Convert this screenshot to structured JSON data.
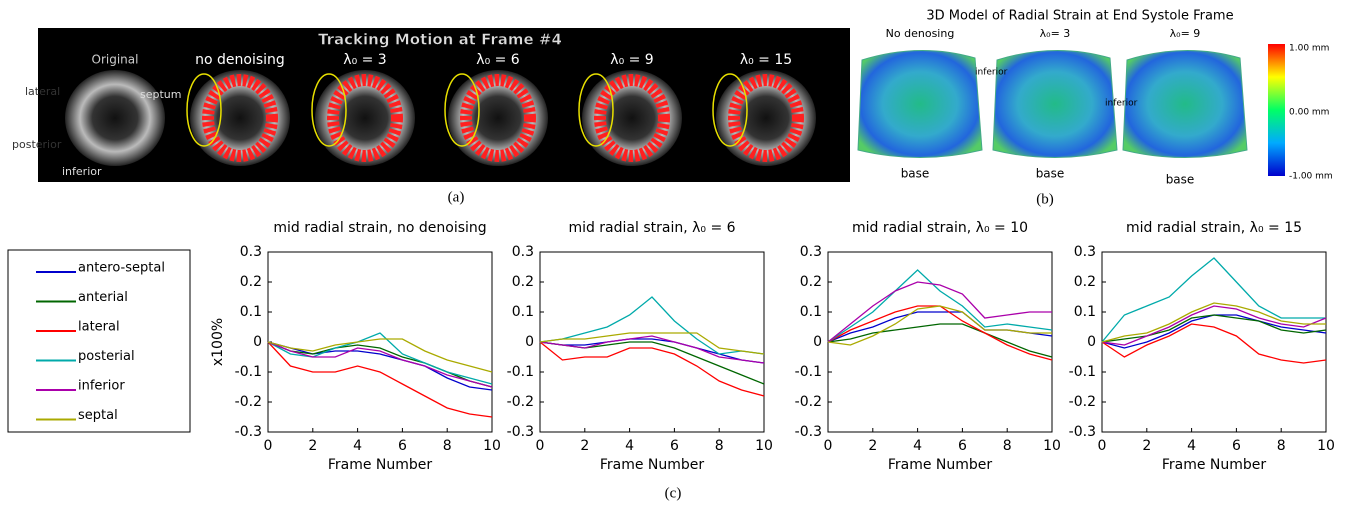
{
  "panel_a": {
    "title": "Tracking Motion at Frame #4",
    "frames": [
      "Original",
      "no denoising",
      "λ₀ = 3",
      "λ₀ = 6",
      "λ₀ = 9",
      "λ₀ = 15"
    ],
    "orientation": [
      "lateral",
      "septum",
      "posterior",
      "inferior"
    ],
    "label": "(a)"
  },
  "panel_b": {
    "title": "3D Model of Radial Strain at End Systole Frame",
    "models": [
      {
        "label": "No denosing",
        "base": "base"
      },
      {
        "label": "λ₀= 3",
        "side": "inferior",
        "base": "base"
      },
      {
        "label": "λ₀= 9",
        "side": "inferior",
        "base": "base"
      }
    ],
    "colorbar": [
      "1.00 mm",
      "0.00 mm",
      "-1.00 mm"
    ],
    "label": "(b)"
  },
  "panel_c": {
    "label": "(c)"
  },
  "chart_data": [
    {
      "type": "line",
      "title": "mid radial strain, no denoising",
      "xlabel": "Frame Number",
      "ylabel": "x100%",
      "x": [
        0,
        1,
        2,
        3,
        4,
        5,
        6,
        7,
        8,
        9,
        10
      ],
      "xlim": [
        0,
        10
      ],
      "ylim": [
        -0.3,
        0.3
      ],
      "xticks": [
        0,
        2,
        4,
        6,
        8,
        10
      ],
      "yticks": [
        0.3,
        0.2,
        0.1,
        0,
        -0.1,
        -0.2,
        -0.3
      ],
      "series": [
        {
          "name": "antero-septal",
          "color": "#0000cc",
          "values": [
            0,
            -0.02,
            -0.04,
            -0.03,
            -0.03,
            -0.04,
            -0.06,
            -0.08,
            -0.12,
            -0.15,
            -0.16
          ]
        },
        {
          "name": "anterial",
          "color": "#006600",
          "values": [
            0,
            -0.03,
            -0.04,
            -0.02,
            -0.01,
            -0.02,
            -0.05,
            -0.07,
            -0.1,
            -0.13,
            -0.15
          ]
        },
        {
          "name": "lateral",
          "color": "#ff0000",
          "values": [
            0,
            -0.08,
            -0.1,
            -0.1,
            -0.08,
            -0.1,
            -0.14,
            -0.18,
            -0.22,
            -0.24,
            -0.25
          ]
        },
        {
          "name": "posterial",
          "color": "#00aaaa",
          "values": [
            0,
            -0.04,
            -0.05,
            -0.02,
            0.0,
            0.03,
            -0.04,
            -0.07,
            -0.1,
            -0.12,
            -0.14
          ]
        },
        {
          "name": "inferior",
          "color": "#aa00aa",
          "values": [
            0,
            -0.03,
            -0.05,
            -0.05,
            -0.02,
            -0.03,
            -0.06,
            -0.08,
            -0.11,
            -0.13,
            -0.15
          ]
        },
        {
          "name": "septal",
          "color": "#aaaa00",
          "values": [
            0,
            -0.02,
            -0.03,
            -0.01,
            0.0,
            0.01,
            0.01,
            -0.03,
            -0.06,
            -0.08,
            -0.1
          ]
        }
      ]
    },
    {
      "type": "line",
      "title": "mid radial strain, λ₀ = 6",
      "xlabel": "Frame Number",
      "x": [
        0,
        1,
        2,
        3,
        4,
        5,
        6,
        7,
        8,
        9,
        10
      ],
      "xlim": [
        0,
        10
      ],
      "ylim": [
        -0.3,
        0.3
      ],
      "xticks": [
        0,
        2,
        4,
        6,
        8,
        10
      ],
      "yticks": [
        0.3,
        0.2,
        0.1,
        0,
        -0.1,
        -0.2,
        -0.3
      ],
      "series": [
        {
          "values": [
            0,
            -0.01,
            -0.01,
            0,
            0.01,
            0.01,
            0,
            -0.02,
            -0.04,
            -0.06,
            -0.07
          ]
        },
        {
          "values": [
            0,
            -0.01,
            -0.02,
            -0.01,
            0,
            0,
            -0.02,
            -0.05,
            -0.08,
            -0.11,
            -0.14
          ]
        },
        {
          "values": [
            0,
            -0.06,
            -0.05,
            -0.05,
            -0.02,
            -0.02,
            -0.04,
            -0.08,
            -0.13,
            -0.16,
            -0.18
          ]
        },
        {
          "values": [
            0,
            0.01,
            0.03,
            0.05,
            0.09,
            0.15,
            0.07,
            0.01,
            -0.04,
            -0.03,
            -0.04
          ]
        },
        {
          "values": [
            0,
            -0.01,
            -0.02,
            0,
            0.01,
            0.02,
            0,
            -0.02,
            -0.05,
            -0.06,
            -0.07
          ]
        },
        {
          "values": [
            0,
            0.01,
            0.01,
            0.02,
            0.03,
            0.03,
            0.03,
            0.03,
            -0.02,
            -0.03,
            -0.04
          ]
        }
      ]
    },
    {
      "type": "line",
      "title": "mid radial strain, λ₀ = 10",
      "xlabel": "Frame Number",
      "x": [
        0,
        1,
        2,
        3,
        4,
        5,
        6,
        7,
        8,
        9,
        10
      ],
      "xlim": [
        0,
        10
      ],
      "ylim": [
        -0.3,
        0.3
      ],
      "xticks": [
        0,
        2,
        4,
        6,
        8,
        10
      ],
      "yticks": [
        0.3,
        0.2,
        0.1,
        0,
        -0.1,
        -0.2,
        -0.3
      ],
      "series": [
        {
          "values": [
            0,
            0.03,
            0.05,
            0.08,
            0.1,
            0.1,
            0.1,
            0.04,
            0.04,
            0.03,
            0.02
          ]
        },
        {
          "values": [
            0,
            0.01,
            0.03,
            0.04,
            0.05,
            0.06,
            0.06,
            0.03,
            0.0,
            -0.03,
            -0.05
          ]
        },
        {
          "values": [
            0,
            0.04,
            0.07,
            0.1,
            0.12,
            0.12,
            0.07,
            0.03,
            -0.01,
            -0.04,
            -0.06
          ]
        },
        {
          "values": [
            0,
            0.05,
            0.1,
            0.17,
            0.24,
            0.17,
            0.12,
            0.05,
            0.06,
            0.05,
            0.04
          ]
        },
        {
          "values": [
            0,
            0.06,
            0.12,
            0.17,
            0.2,
            0.19,
            0.16,
            0.08,
            0.09,
            0.1,
            0.1
          ]
        },
        {
          "values": [
            0,
            -0.01,
            0.02,
            0.06,
            0.11,
            0.12,
            0.1,
            0.04,
            0.04,
            0.03,
            0.03
          ]
        }
      ]
    },
    {
      "type": "line",
      "title": "mid radial strain, λ₀ = 15",
      "xlabel": "Frame Number",
      "x": [
        0,
        1,
        2,
        3,
        4,
        5,
        6,
        7,
        8,
        9,
        10
      ],
      "xlim": [
        0,
        10
      ],
      "ylim": [
        -0.3,
        0.3
      ],
      "xticks": [
        0,
        2,
        4,
        6,
        8,
        10
      ],
      "yticks": [
        0.3,
        0.2,
        0.1,
        0,
        -0.1,
        -0.2,
        -0.3
      ],
      "series": [
        {
          "values": [
            0,
            -0.02,
            0.0,
            0.03,
            0.07,
            0.09,
            0.09,
            0.07,
            0.05,
            0.04,
            0.03
          ]
        },
        {
          "values": [
            0,
            0.01,
            0.02,
            0.04,
            0.08,
            0.09,
            0.08,
            0.07,
            0.04,
            0.03,
            0.04
          ]
        },
        {
          "values": [
            0,
            -0.05,
            -0.01,
            0.02,
            0.06,
            0.05,
            0.02,
            -0.04,
            -0.06,
            -0.07,
            -0.06
          ]
        },
        {
          "values": [
            0,
            0.09,
            0.12,
            0.15,
            0.22,
            0.28,
            0.2,
            0.12,
            0.08,
            0.08,
            0.08
          ]
        },
        {
          "values": [
            0,
            -0.01,
            0.02,
            0.05,
            0.09,
            0.12,
            0.11,
            0.08,
            0.06,
            0.05,
            0.08
          ]
        },
        {
          "values": [
            0,
            0.02,
            0.03,
            0.06,
            0.1,
            0.13,
            0.12,
            0.1,
            0.07,
            0.06,
            0.06
          ]
        }
      ]
    }
  ]
}
